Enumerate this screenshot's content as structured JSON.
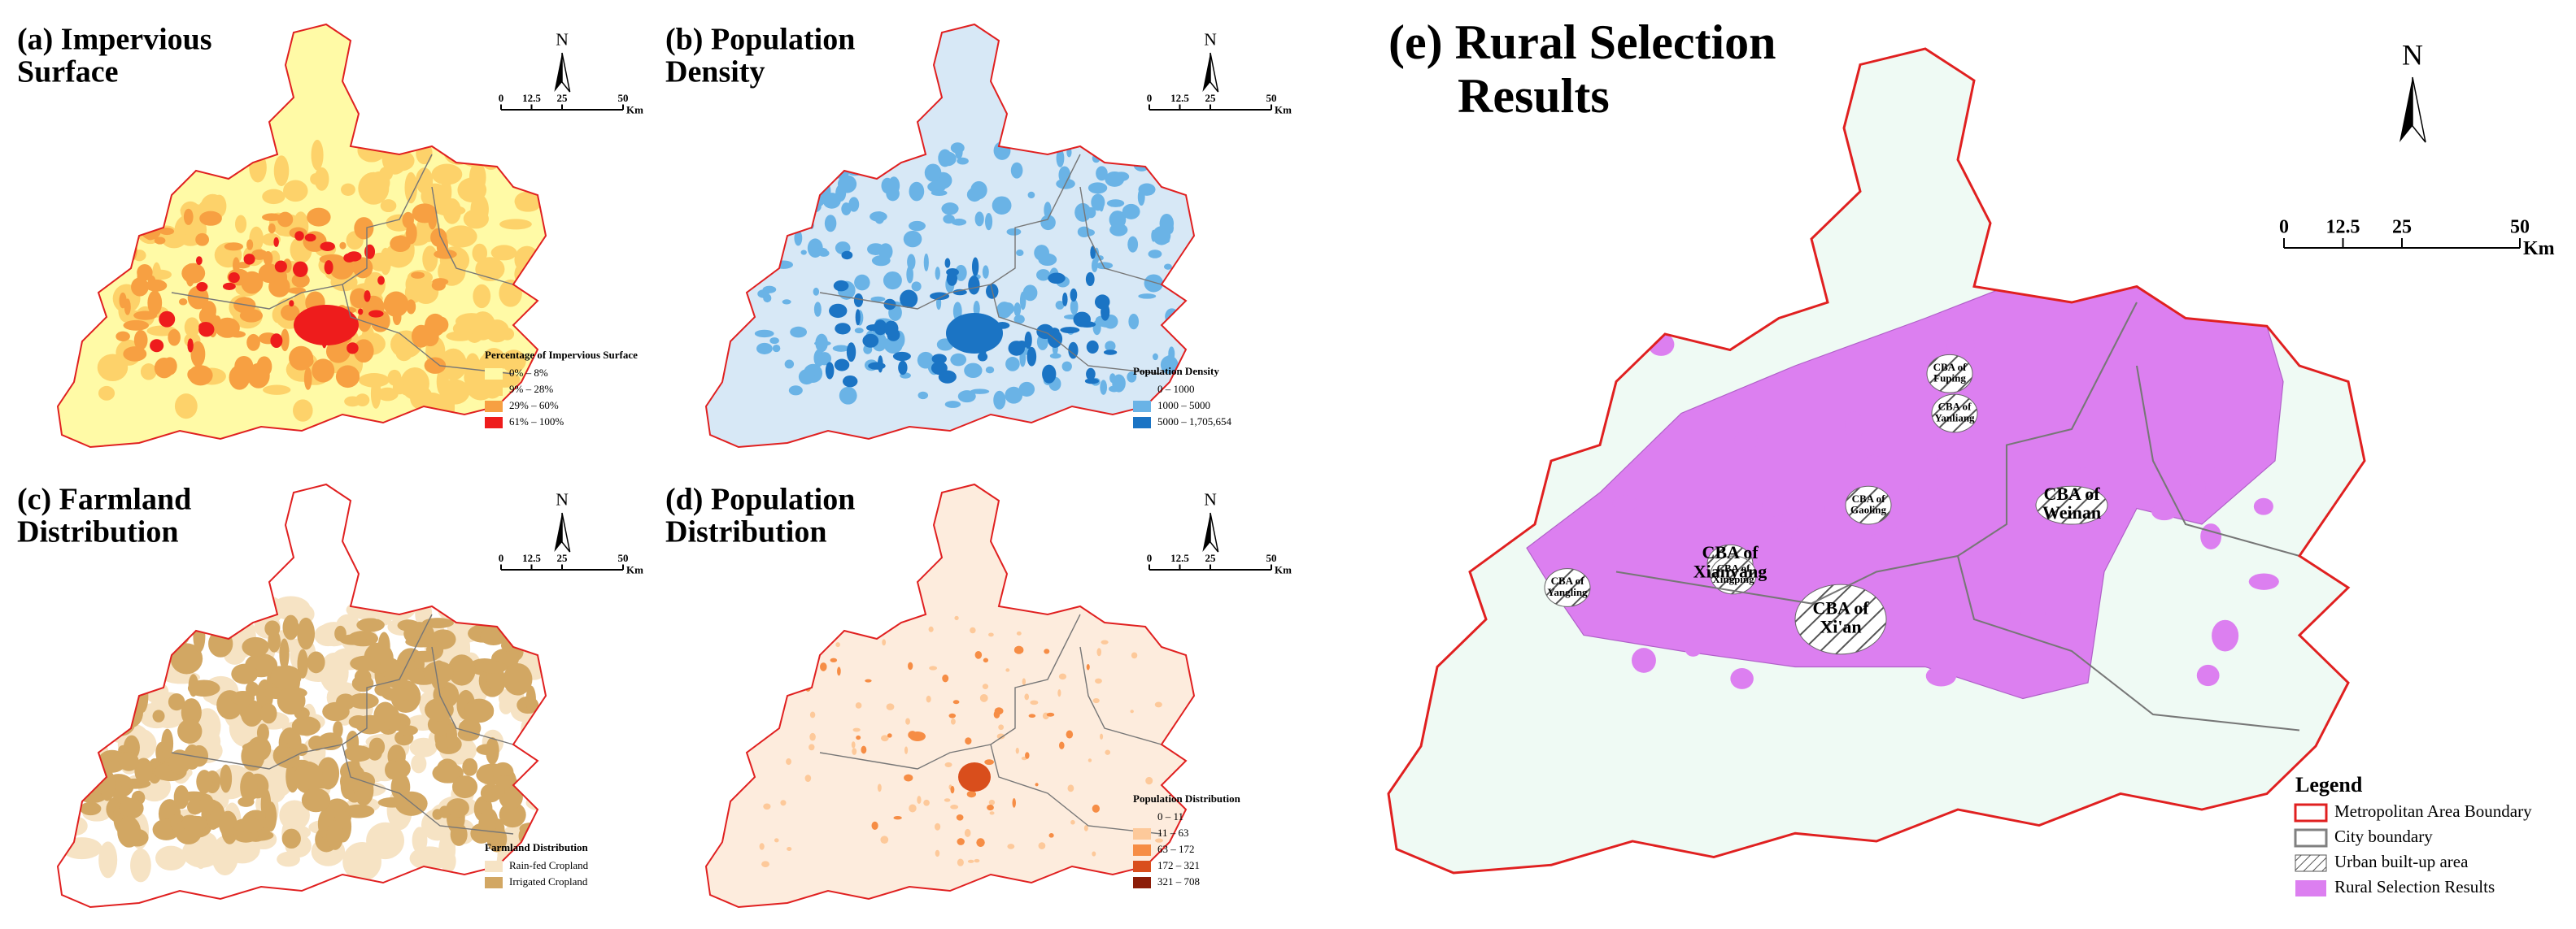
{
  "panels": [
    {
      "title": [
        "(a) Impervious",
        "Surface"
      ],
      "north": "N",
      "scale": {
        "ticks": [
          0,
          12.5,
          25,
          50
        ],
        "unit": "Km"
      },
      "legend": {
        "title": "Percentage of Impervious Surface",
        "items": [
          {
            "label": "0% – 8%",
            "color": "#fffaa6"
          },
          {
            "label": "9% – 28%",
            "color": "#fdd26a"
          },
          {
            "label": "29% – 60%",
            "color": "#f7a042"
          },
          {
            "label": "61% – 100%",
            "color": "#ee1c1c"
          }
        ]
      }
    },
    {
      "title": [
        "(b) Population",
        "Density"
      ],
      "north": "N",
      "scale": {
        "ticks": [
          0,
          12.5,
          25,
          50
        ],
        "unit": "Km"
      },
      "legend": {
        "title": "Population Density",
        "items": [
          {
            "label": "0 – 1000",
            "color": "#d7e8f6"
          },
          {
            "label": "1000 – 5000",
            "color": "#6ab3e6"
          },
          {
            "label": "5000 – 1,705,654",
            "color": "#1b74c4"
          }
        ]
      }
    },
    {
      "title": [
        "(c) Farmland",
        "Distribution"
      ],
      "north": "N",
      "scale": {
        "ticks": [
          0,
          12.5,
          25,
          50
        ],
        "unit": "Km"
      },
      "legend": {
        "title": "Farmland Distribution",
        "items": [
          {
            "label": "Rain-fed Cropland",
            "color": "#f6e3c4"
          },
          {
            "label": "Irrigated Cropland",
            "color": "#d2a763"
          }
        ]
      }
    },
    {
      "title": [
        "(d) Population",
        "Distribution"
      ],
      "north": "N",
      "scale": {
        "ticks": [
          0,
          12.5,
          25,
          50
        ],
        "unit": "Km"
      },
      "legend": {
        "title": "Population Distribution",
        "items": [
          {
            "label": "0 – 11",
            "color": "#fdecdd"
          },
          {
            "label": "11 – 63",
            "color": "#fdc99a"
          },
          {
            "label": "63 – 172",
            "color": "#f68d45"
          },
          {
            "label": "172 – 321",
            "color": "#d94e1c"
          },
          {
            "label": "321 – 708",
            "color": "#8c1d08"
          }
        ]
      }
    }
  ],
  "main": {
    "title": [
      "(e) Rural Selection",
      "Results"
    ],
    "north": "N",
    "scale": {
      "ticks": [
        0,
        12.5,
        25,
        50
      ],
      "unit": "Km"
    },
    "labels": [
      {
        "lines": [
          "CBA of",
          "Fuping"
        ]
      },
      {
        "lines": [
          "CBA of",
          "Yanliang"
        ]
      },
      {
        "lines": [
          "CBA of",
          "Gaoling"
        ]
      },
      {
        "lines": [
          "CBA of",
          "Weinan"
        ]
      },
      {
        "lines": [
          "CBA of",
          "Xianyang"
        ]
      },
      {
        "lines": [
          "CBA of",
          "Xi'an"
        ]
      },
      {
        "lines": [
          "CBA of",
          "Yangling"
        ]
      },
      {
        "lines": [
          "CBA of",
          "Xingping"
        ]
      }
    ],
    "legend": {
      "title": "Legend",
      "items": [
        {
          "label": "Metropolitan Area Boundary",
          "color": "#e02020"
        },
        {
          "label": "City boundary",
          "color": "#808080"
        },
        {
          "label": "Urban built-up area",
          "color": "#555555"
        },
        {
          "label": "Rural Selection Results",
          "color": "#dc7ff0"
        }
      ]
    }
  }
}
